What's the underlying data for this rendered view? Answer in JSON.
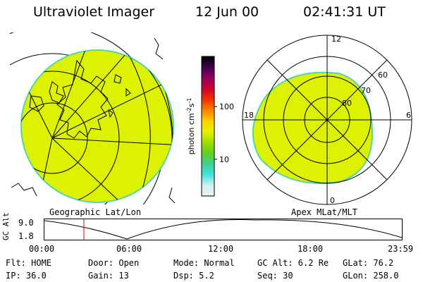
{
  "header": {
    "instrument": "Ultraviolet Imager",
    "date": "12 Jun 00",
    "time": "02:41:31 UT"
  },
  "colors": {
    "aurora_fill": "#ddf200",
    "aurora_edge": "#55d4b0",
    "marker": "#d00000"
  },
  "colorbar": {
    "unit_main": "photon cm",
    "unit_exp1": "-2",
    "unit_mid": "s",
    "unit_exp2": "-1",
    "ticks": [
      {
        "label": "100",
        "value": 100
      },
      {
        "label": "10",
        "value": 10
      }
    ],
    "stops": [
      "#f0f0f0",
      "#d0f0f0",
      "#40e0e0",
      "#40d090",
      "#60d020",
      "#a0e000",
      "#e8f000",
      "#ffd000",
      "#ff8000",
      "#f03000",
      "#d00030",
      "#900060",
      "#400050",
      "#000000"
    ]
  },
  "geo_panel": {
    "caption": "Geographic Lat/Lon"
  },
  "polar_panel": {
    "caption": "Apex MLat/MLT",
    "mlt_labels": [
      "12",
      "18",
      "6",
      "0"
    ],
    "mlat_labels": [
      "60",
      "70",
      "80"
    ]
  },
  "timeline": {
    "y_axis_label": "GC Alt",
    "y_ticks": [
      "9.0",
      "1.8"
    ],
    "ylim": [
      1.8,
      9.0
    ],
    "x_ticks": [
      "00:00",
      "06:00",
      "12:00",
      "18:00",
      "23:59"
    ],
    "current_time_marker": "02:41"
  },
  "status": {
    "row1": {
      "flt": "Flt: HOME",
      "door": "Door: Open",
      "mode": "Mode: Normal",
      "gcalt": "GC Alt: 6.2 Re",
      "glat": "GLat:  76.2"
    },
    "row2": {
      "ip": "IP: 36.0",
      "gain": "Gain: 13",
      "dsp": "Dsp:    5.2",
      "seq": "Seq: 30",
      "glon": "GLon: 258.0"
    }
  }
}
